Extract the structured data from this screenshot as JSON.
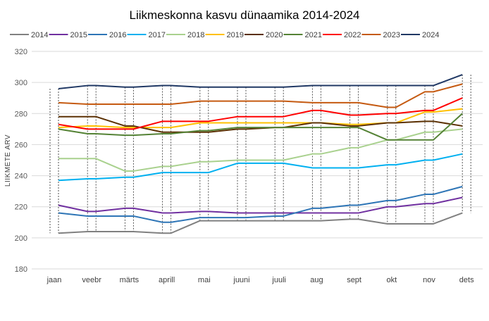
{
  "chart_data": {
    "type": "line",
    "title": "Liikmeskonna kasvu dünaamika 2014-2024",
    "xlabel": "",
    "ylabel": "LIIKMETE ARV",
    "ylim": [
      180,
      320
    ],
    "yticks": [
      180,
      200,
      220,
      240,
      260,
      280,
      300,
      320
    ],
    "grid": true,
    "legend_position": "top",
    "categories": [
      "jaan",
      "veebr",
      "märts",
      "aprill",
      "mai",
      "juuni",
      "juuli",
      "aug",
      "sept",
      "okt",
      "nov",
      "dets"
    ],
    "series": [
      {
        "name": "2014",
        "color": "#808080",
        "values": [
          203,
          204,
          204,
          203,
          211,
          211,
          211,
          211,
          212,
          209,
          209,
          216
        ]
      },
      {
        "name": "2015",
        "color": "#7030a0",
        "values": [
          221,
          217,
          219,
          216,
          217,
          216,
          216,
          216,
          216,
          220,
          222,
          226
        ]
      },
      {
        "name": "2016",
        "color": "#2e75b6",
        "values": [
          216,
          214,
          214,
          210,
          213,
          213,
          214,
          219,
          221,
          224,
          228,
          233
        ]
      },
      {
        "name": "2017",
        "color": "#00b0f0",
        "values": [
          237,
          238,
          239,
          242,
          242,
          248,
          248,
          245,
          245,
          247,
          250,
          254
        ]
      },
      {
        "name": "2018",
        "color": "#a9d18e",
        "values": [
          251,
          251,
          243,
          246,
          249,
          250,
          250,
          254,
          258,
          263,
          268,
          270
        ]
      },
      {
        "name": "2019",
        "color": "#ffc000",
        "values": [
          271,
          272,
          271,
          271,
          274,
          274,
          274,
          274,
          273,
          274,
          281,
          283
        ]
      },
      {
        "name": "2020",
        "color": "#5b3003",
        "values": [
          278,
          278,
          272,
          268,
          268,
          270,
          271,
          274,
          272,
          274,
          275,
          272
        ]
      },
      {
        "name": "2021",
        "color": "#548235",
        "values": [
          270,
          267,
          266,
          267,
          269,
          271,
          271,
          271,
          271,
          263,
          263,
          280
        ]
      },
      {
        "name": "2022",
        "color": "#ff0000",
        "values": [
          273,
          270,
          270,
          275,
          275,
          278,
          278,
          282,
          279,
          280,
          282,
          290
        ]
      },
      {
        "name": "2023",
        "color": "#c55a11",
        "values": [
          287,
          286,
          286,
          286,
          288,
          288,
          288,
          287,
          287,
          284,
          294,
          299
        ]
      },
      {
        "name": "2024",
        "color": "#203864",
        "values": [
          296,
          298,
          297,
          298,
          297,
          297,
          297,
          298,
          298,
          298,
          298,
          305
        ]
      }
    ]
  }
}
